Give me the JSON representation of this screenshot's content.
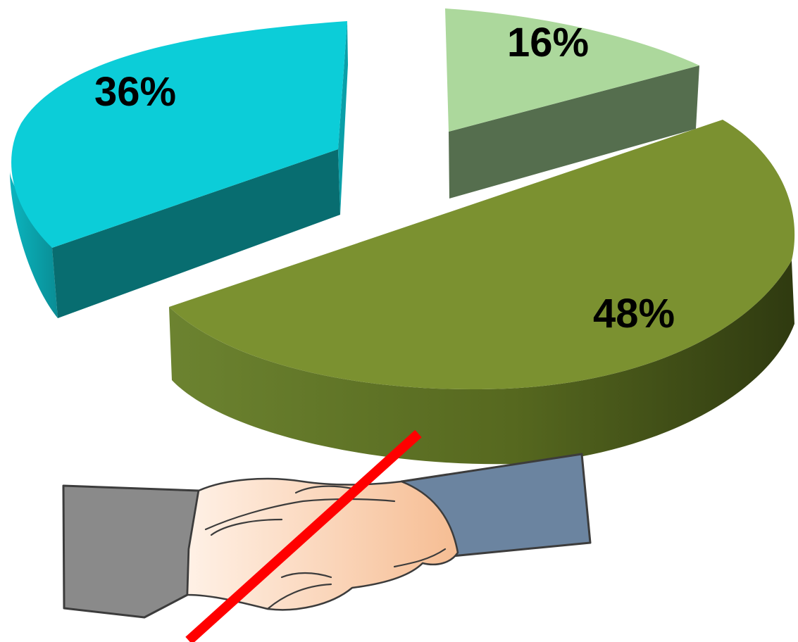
{
  "chart_data": {
    "type": "pie",
    "three_d": true,
    "exploded": true,
    "legend": "none",
    "slices": [
      {
        "value": 36,
        "label": "36%",
        "top_color": "#0ccdd8",
        "side_color": "#0a9fa8",
        "cut_color": "#086d70"
      },
      {
        "value": 16,
        "label": "16%",
        "top_color": "#acd89c",
        "side_color": "#6f8f60",
        "cut_color": "#556e4e"
      },
      {
        "value": 48,
        "label": "48%",
        "top_color": "#7b9130",
        "side_color": "#5a6e24",
        "cut_color": "#3f4e18"
      }
    ]
  },
  "illustration": {
    "subject": "handshake",
    "left_sleeve_color": "#8a8a8a",
    "right_sleeve_color": "#6b84a0",
    "skin_light": "#fde7d6",
    "skin_dark": "#f7c6a2",
    "outline_color": "#3c3c3c",
    "strike_color": "#ff0000"
  }
}
